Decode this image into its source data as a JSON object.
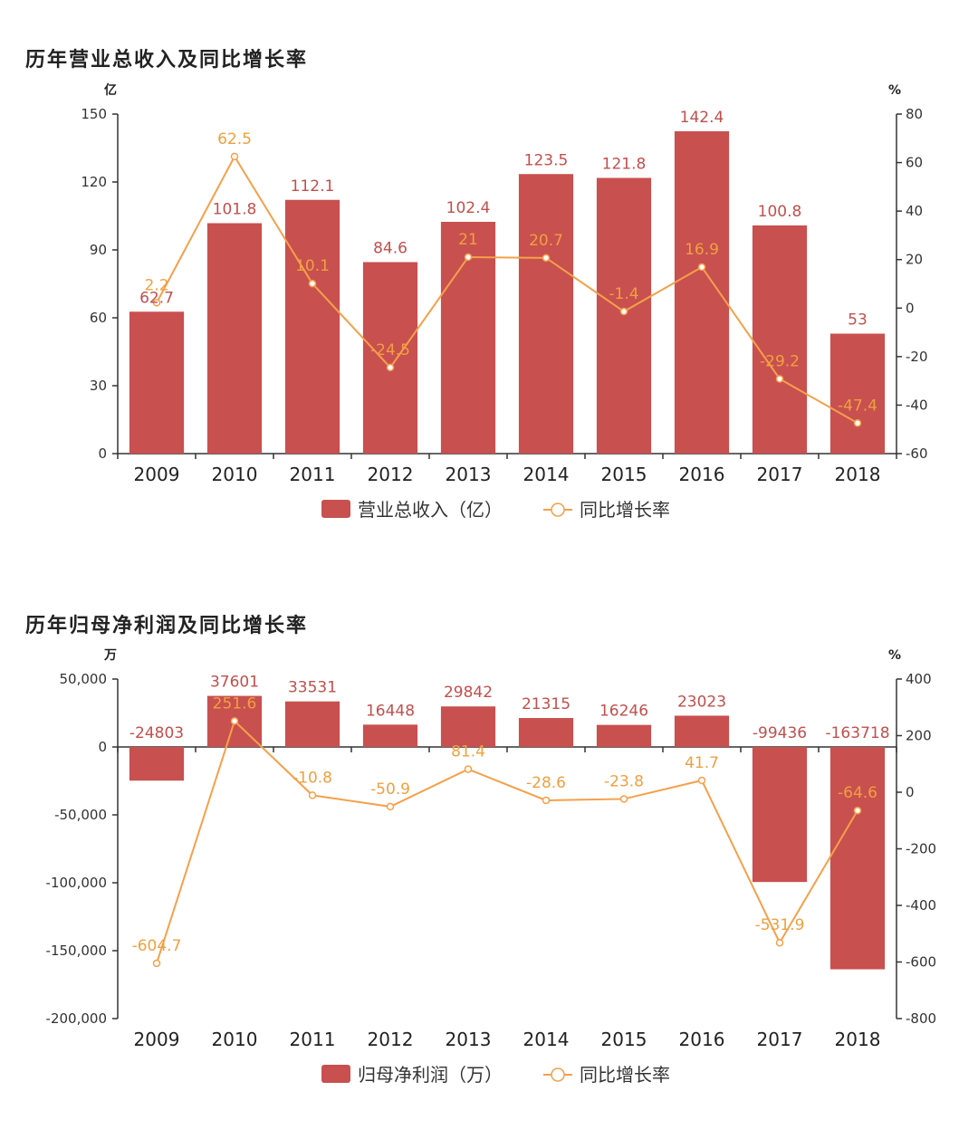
{
  "colors": {
    "bar": "#c8504f",
    "line": "#f5a04a",
    "axis": "#333333"
  },
  "chart_data": [
    {
      "type": "bar",
      "title": "历年营业总收入及同比增长率",
      "left_unit": "亿",
      "right_unit": "%",
      "categories": [
        "2009",
        "2010",
        "2011",
        "2012",
        "2013",
        "2014",
        "2015",
        "2016",
        "2017",
        "2018"
      ],
      "bar_series": {
        "name": "营业总收入（亿）",
        "values": [
          62.7,
          101.8,
          112.1,
          84.6,
          102.4,
          123.5,
          121.8,
          142.4,
          100.8,
          53
        ]
      },
      "line_series": {
        "name": "同比增长率",
        "values": [
          2.2,
          62.5,
          10.1,
          -24.5,
          21,
          20.7,
          -1.4,
          16.9,
          -29.2,
          -47.4
        ]
      },
      "ylim_left": [
        0,
        150
      ],
      "yticks_left": [
        0,
        30,
        60,
        90,
        120,
        150
      ],
      "ytick_labels_left": [
        "0",
        "30",
        "60",
        "90",
        "120",
        "150"
      ],
      "ylim_right": [
        -60,
        80
      ],
      "yticks_right": [
        -60,
        -40,
        -20,
        0,
        20,
        40,
        60,
        80
      ],
      "ytick_labels_right": [
        "-60",
        "-40",
        "-20",
        "0",
        "20",
        "40",
        "60",
        "80"
      ],
      "legend": "bottom-center",
      "grid": false
    },
    {
      "type": "bar",
      "title": "历年归母净利润及同比增长率",
      "left_unit": "万",
      "right_unit": "%",
      "categories": [
        "2009",
        "2010",
        "2011",
        "2012",
        "2013",
        "2014",
        "2015",
        "2016",
        "2017",
        "2018"
      ],
      "bar_series": {
        "name": "归母净利润（万）",
        "values": [
          -24803,
          37601,
          33531,
          16448,
          29842,
          21315,
          16246,
          23023,
          -99436,
          -163718
        ]
      },
      "line_series": {
        "name": "同比增长率",
        "values": [
          -604.7,
          251.6,
          -10.8,
          -50.9,
          81.4,
          -28.6,
          -23.8,
          41.7,
          -531.9,
          -64.6
        ]
      },
      "ylim_left": [
        -200000,
        50000
      ],
      "yticks_left": [
        -200000,
        -150000,
        -100000,
        -50000,
        0,
        50000
      ],
      "ytick_labels_left": [
        "-200,000",
        "-150,000",
        "-100,000",
        "-50,000",
        "0",
        "50,000"
      ],
      "ylim_right": [
        -800,
        400
      ],
      "yticks_right": [
        -800,
        -600,
        -400,
        -200,
        0,
        200,
        400
      ],
      "ytick_labels_right": [
        "-800",
        "-600",
        "-400",
        "-200",
        "0",
        "200",
        "400"
      ],
      "legend": "bottom-center",
      "grid": false
    }
  ]
}
